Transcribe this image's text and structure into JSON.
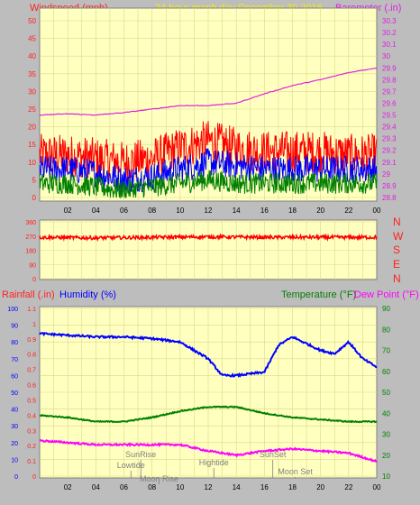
{
  "header": {
    "left_label": "Windspeed (mph)",
    "center_label": "24 hour graph day   December 30 2016",
    "right_label": "Barometer (.in)"
  },
  "colors": {
    "background": "#bdbdbd",
    "plot_bg": "#ffffc0",
    "grid": "#d9d98a",
    "axis_text": "#ff2020",
    "barometer": "#e020e0",
    "title_yellow": "#f0f000",
    "humidity": "#0000ff",
    "temperature": "#008000",
    "dewpoint": "#ff00ff",
    "wind_gust": "#ff0000",
    "wind_avg": "#0000ff",
    "wind_low": "#008000"
  },
  "chart_data": [
    {
      "type": "line",
      "name": "wind-barometer",
      "x_tick_labels": [
        "02",
        "04",
        "06",
        "08",
        "10",
        "12",
        "14",
        "16",
        "18",
        "20",
        "22",
        "00"
      ],
      "left_axis": {
        "ylim": [
          0,
          50
        ],
        "ticks": [
          "0",
          "5",
          "10",
          "15",
          "20",
          "25",
          "30",
          "35",
          "40",
          "45",
          "50"
        ]
      },
      "right_axis": {
        "ylim": [
          28.8,
          30.3
        ],
        "ticks": [
          "28.8",
          "28.9",
          "29",
          "29.1",
          "29.2",
          "29.3",
          "29.4",
          "29.5",
          "29.6",
          "29.7",
          "29.8",
          "29.9",
          "30",
          "30.1",
          "30.2",
          "30.3"
        ]
      },
      "series": [
        {
          "name": "Barometer",
          "axis": "right",
          "x": [
            0,
            2,
            4,
            6,
            8,
            10,
            12,
            14,
            16,
            18,
            20,
            22,
            24
          ],
          "values": [
            29.5,
            29.51,
            29.5,
            29.52,
            29.55,
            29.58,
            29.58,
            29.6,
            29.68,
            29.75,
            29.8,
            29.86,
            29.9
          ]
        },
        {
          "name": "Windspeed gust",
          "axis": "left",
          "x": [
            0,
            2,
            4,
            6,
            8,
            10,
            12,
            14,
            16,
            18,
            20,
            22,
            24
          ],
          "values": [
            12,
            12,
            11,
            10,
            11,
            14,
            16,
            14,
            13,
            13,
            13,
            12,
            12
          ]
        },
        {
          "name": "Windspeed avg",
          "axis": "left",
          "x": [
            0,
            2,
            4,
            6,
            8,
            10,
            12,
            14,
            16,
            18,
            20,
            22,
            24
          ],
          "values": [
            8,
            8,
            7,
            5,
            6,
            8,
            10,
            9,
            8,
            8,
            8,
            8,
            8
          ]
        },
        {
          "name": "Windspeed low",
          "axis": "left",
          "x": [
            0,
            2,
            4,
            6,
            8,
            10,
            12,
            14,
            16,
            18,
            20,
            22,
            24
          ],
          "values": [
            4,
            4,
            3,
            2,
            3,
            4,
            5,
            4,
            4,
            4,
            4,
            4,
            4
          ]
        }
      ]
    },
    {
      "type": "line",
      "name": "wind-direction",
      "left_axis": {
        "ylim": [
          0,
          360
        ],
        "ticks": [
          "0",
          "90",
          "180",
          "270",
          "360"
        ]
      },
      "right_labels": [
        "N",
        "W",
        "S",
        "E",
        "N"
      ],
      "series": [
        {
          "name": "Wind direction",
          "x": [
            0,
            4,
            8,
            12,
            16,
            20,
            24
          ],
          "values": [
            262,
            258,
            262,
            265,
            262,
            262,
            262
          ]
        }
      ]
    },
    {
      "type": "line",
      "name": "rain-humidity-temp",
      "header": {
        "rain_label": "Rainfall (.in)",
        "humidity_label": "Humidity (%)",
        "temp_label": "Temperature (°F)",
        "dew_label": "Dew Point (°F)"
      },
      "rain_axis": {
        "ylim": [
          0,
          1.1
        ],
        "ticks": [
          "0",
          "0.1",
          "0.2",
          "0.3",
          "0.4",
          "0.5",
          "0.6",
          "0.7",
          "0.8",
          "0.9",
          "1",
          "1.1"
        ]
      },
      "humidity_axis": {
        "ylim": [
          0,
          100
        ],
        "ticks": [
          "0",
          "10",
          "20",
          "30",
          "40",
          "50",
          "60",
          "70",
          "80",
          "90",
          "100"
        ]
      },
      "temp_axis": {
        "ylim": [
          10,
          90
        ],
        "ticks": [
          "10",
          "20",
          "30",
          "40",
          "50",
          "60",
          "70",
          "80",
          "90"
        ]
      },
      "x_tick_labels": [
        "02",
        "04",
        "06",
        "08",
        "10",
        "12",
        "14",
        "16",
        "18",
        "20",
        "22",
        "00"
      ],
      "series": [
        {
          "name": "Humidity",
          "x": [
            0,
            2,
            4,
            6,
            8,
            10,
            12,
            13,
            14,
            16,
            17,
            18,
            20,
            21,
            22,
            23,
            24
          ],
          "values": [
            85,
            84,
            83,
            83,
            82,
            80,
            70,
            60,
            60,
            62,
            78,
            83,
            75,
            73,
            80,
            70,
            65
          ]
        },
        {
          "name": "Temperature",
          "x": [
            0,
            2,
            4,
            6,
            8,
            10,
            12,
            14,
            16,
            18,
            20,
            22,
            24
          ],
          "values": [
            39,
            38,
            36,
            36,
            38,
            41,
            43,
            43,
            40,
            38,
            37,
            36,
            36
          ]
        },
        {
          "name": "Dew Point",
          "x": [
            0,
            2,
            4,
            6,
            8,
            10,
            12,
            14,
            16,
            18,
            20,
            22,
            24
          ],
          "values": [
            27,
            26,
            25,
            25,
            25,
            25,
            22,
            20,
            22,
            23,
            22,
            21,
            17
          ]
        }
      ],
      "events": [
        {
          "label": "SunRise",
          "hour": 7.2
        },
        {
          "label": "Lowtide",
          "hour": 6.5
        },
        {
          "label": "Moon Rise",
          "hour": 8.5
        },
        {
          "label": "Hightide",
          "hour": 12.4
        },
        {
          "label": "SunSet",
          "hour": 16.6
        },
        {
          "label": "Moon Set",
          "hour": 18.2
        }
      ]
    }
  ]
}
